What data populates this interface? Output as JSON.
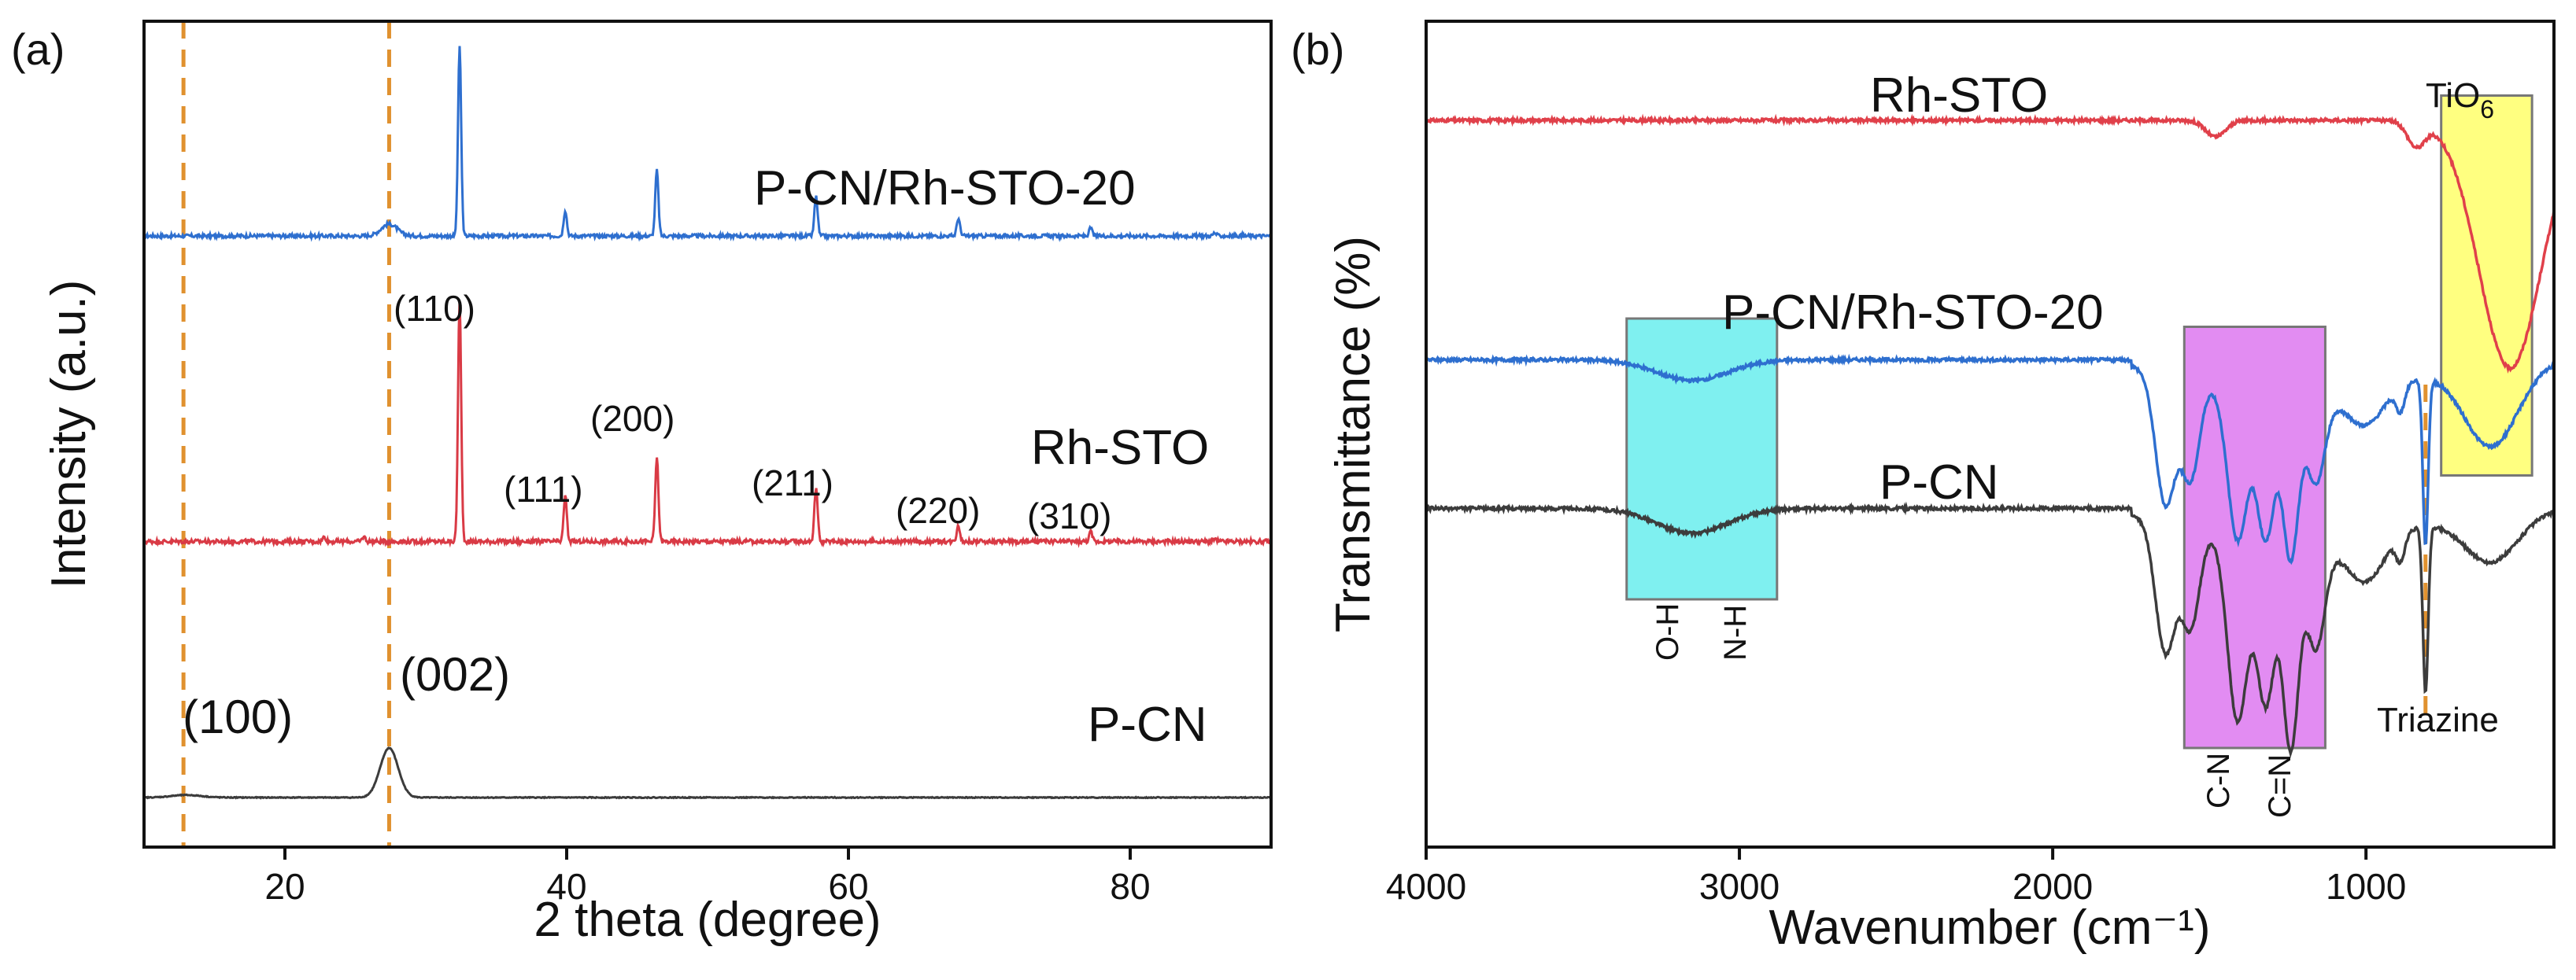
{
  "chart_data": [
    {
      "type": "line",
      "panel_label": "(a)",
      "xlabel": "2 theta (degree)",
      "ylabel": "Intensity (a.u.)",
      "xlim": [
        10,
        90
      ],
      "xticks": [
        "20",
        "40",
        "60",
        "80"
      ],
      "xtick_values": [
        20,
        40,
        60,
        80
      ],
      "reference_lines_x": [
        12.8,
        27.4
      ],
      "series": [
        {
          "name": "P-CN/Rh-STO-20",
          "color": "#2e6fcf",
          "baseline": 0.74,
          "scale": 0.24,
          "broad": [
            {
              "x": 27.4,
              "h": 0.06,
              "w": 0.8
            }
          ],
          "peaks": [
            {
              "x": 32.4,
              "h": 0.95
            },
            {
              "x": 39.9,
              "h": 0.13
            },
            {
              "x": 46.4,
              "h": 0.33
            },
            {
              "x": 57.7,
              "h": 0.2
            },
            {
              "x": 67.8,
              "h": 0.09
            },
            {
              "x": 77.2,
              "h": 0.04
            },
            {
              "x": 86.0,
              "h": 0.015
            }
          ]
        },
        {
          "name": "Rh-STO",
          "color": "#d93a45",
          "baseline": 0.37,
          "scale": 0.29,
          "broad": [],
          "peaks": [
            {
              "x": 22.8,
              "h": 0.02
            },
            {
              "x": 25.6,
              "h": 0.02
            },
            {
              "x": 32.4,
              "h": 1.0
            },
            {
              "x": 39.9,
              "h": 0.19
            },
            {
              "x": 46.4,
              "h": 0.35
            },
            {
              "x": 57.7,
              "h": 0.23
            },
            {
              "x": 67.8,
              "h": 0.07
            },
            {
              "x": 77.2,
              "h": 0.04
            },
            {
              "x": 86.0,
              "h": 0.01
            }
          ]
        },
        {
          "name": "P-CN",
          "color": "#3c3c3c",
          "baseline": 0.06,
          "scale": 0.06,
          "broad": [
            {
              "x": 13.0,
              "h": 0.05,
              "w": 1.5
            },
            {
              "x": 27.4,
              "h": 1.0,
              "w": 0.9
            }
          ],
          "peaks": []
        }
      ],
      "annotations": {
        "series_labels": [
          "P-CN/Rh-STO-20",
          "Rh-STO",
          "P-CN"
        ],
        "peak_labels": [
          "(110)",
          "(111)",
          "(200)",
          "(211)",
          "(220)",
          "(310)"
        ],
        "pcn_peak_labels": [
          "(100)",
          "(002)"
        ]
      }
    },
    {
      "type": "line",
      "panel_label": "(b)",
      "xlabel": "Wavenumber (cm⁻¹)",
      "ylabel": "Transmittance (%)",
      "xlim": [
        4000,
        400
      ],
      "xticks": [
        "4000",
        "3000",
        "2000",
        "1000"
      ],
      "xtick_values": [
        4000,
        3000,
        2000,
        1000
      ],
      "reference_lines_x": [
        810
      ],
      "series": [
        {
          "name": "Rh-STO",
          "color": "#e0404a",
          "baseline": 0.88,
          "features": [
            {
              "x": 1480,
              "depth": 0.02,
              "width": 45
            },
            {
              "x": 840,
              "depth": 0.03,
              "width": 40
            },
            {
              "x": 540,
              "depth": 0.3,
              "width": 140
            }
          ]
        },
        {
          "name": "P-CN/Rh-STO-20",
          "color": "#2e6fcf",
          "baseline": 0.59,
          "features": [
            {
              "x": 3150,
              "depth": 0.025,
              "width": 160
            },
            {
              "x": 1640,
              "depth": 0.16,
              "width": 45
            },
            {
              "x": 1560,
              "depth": 0.12,
              "width": 40
            },
            {
              "x": 1410,
              "depth": 0.18,
              "width": 45
            },
            {
              "x": 1320,
              "depth": 0.17,
              "width": 40
            },
            {
              "x": 1240,
              "depth": 0.19,
              "width": 35
            },
            {
              "x": 1160,
              "depth": 0.1,
              "width": 40
            },
            {
              "x": 1000,
              "depth": 0.04,
              "width": 80
            },
            {
              "x": 890,
              "depth": 0.03,
              "width": 20
            },
            {
              "x": 810,
              "depth": 0.2,
              "width": 12
            },
            {
              "x": 600,
              "depth": 0.1,
              "width": 120
            }
          ]
        },
        {
          "name": "P-CN",
          "color": "#3c3c3c",
          "baseline": 0.41,
          "features": [
            {
              "x": 3150,
              "depth": 0.03,
              "width": 160
            },
            {
              "x": 1640,
              "depth": 0.16,
              "width": 45
            },
            {
              "x": 1560,
              "depth": 0.12,
              "width": 40
            },
            {
              "x": 1410,
              "depth": 0.22,
              "width": 45
            },
            {
              "x": 1320,
              "depth": 0.19,
              "width": 40
            },
            {
              "x": 1240,
              "depth": 0.24,
              "width": 35
            },
            {
              "x": 1160,
              "depth": 0.12,
              "width": 40
            },
            {
              "x": 1000,
              "depth": 0.05,
              "width": 80
            },
            {
              "x": 890,
              "depth": 0.03,
              "width": 20
            },
            {
              "x": 810,
              "depth": 0.2,
              "width": 12
            },
            {
              "x": 600,
              "depth": 0.06,
              "width": 120
            }
          ]
        }
      ],
      "highlight_boxes": [
        {
          "name": "OH-NH",
          "x_from": 3360,
          "x_to": 2880,
          "y_from": 0.3,
          "y_to": 0.64,
          "color": "#7ff0f0",
          "labels": [
            "O-H",
            "N-H"
          ]
        },
        {
          "name": "CN",
          "x_from": 1580,
          "x_to": 1130,
          "y_from": 0.12,
          "y_to": 0.63,
          "color": "#e28cf2",
          "labels": [
            "C-N",
            "C=N"
          ]
        },
        {
          "name": "TiO6",
          "x_from": 760,
          "x_to": 470,
          "y_from": 0.45,
          "y_to": 0.91,
          "color": "#ffff80",
          "labels": []
        }
      ],
      "annotations": {
        "series_labels": [
          "Rh-STO",
          "P-CN/Rh-STO-20",
          "P-CN"
        ],
        "tio6_label": "TiO",
        "tio6_subscript": "6",
        "triazine_label": "Triazine"
      }
    }
  ]
}
